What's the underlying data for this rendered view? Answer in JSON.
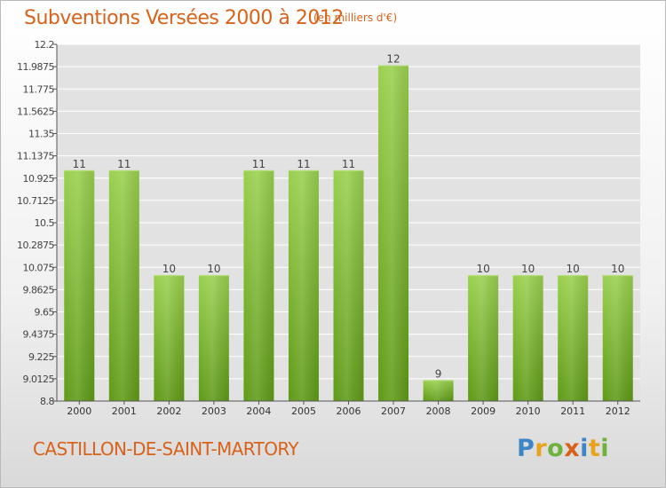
{
  "header": {
    "title": "Subventions Versées 2000 à 2012",
    "unit": "(en milliers d'€)"
  },
  "footer": {
    "commune": "CASTILLON-DE-SAINT-MARTORY",
    "logo_text": "Proxiti",
    "logo_colors": [
      "#3d85c6",
      "#e8a21c",
      "#6fb23b",
      "#d8621a",
      "#3d85c6",
      "#e8a21c",
      "#6fb23b"
    ]
  },
  "colors": {
    "accent": "#d8621a",
    "bar_light": "#9ad04f",
    "bar_dark": "#5f9a17",
    "plot_bg": "#e2e2e2",
    "grid": "#ffffff"
  },
  "chart_data": {
    "type": "bar",
    "categories": [
      "2000",
      "2001",
      "2002",
      "2003",
      "2004",
      "2005",
      "2006",
      "2007",
      "2008",
      "2009",
      "2010",
      "2011",
      "2012"
    ],
    "values": [
      11,
      11,
      10,
      10,
      11,
      11,
      11,
      12,
      9,
      10,
      10,
      10,
      10
    ],
    "value_labels": [
      "11",
      "11",
      "10",
      "10",
      "11",
      "11",
      "11",
      "12",
      "9",
      "10",
      "10",
      "10",
      "10"
    ],
    "ylim": [
      8.8,
      12.2
    ],
    "yticks": [
      8.8,
      9.0125,
      9.225,
      9.4375,
      9.65,
      9.8625,
      10.075,
      10.2875,
      10.5,
      10.7125,
      10.925,
      11.1375,
      11.35,
      11.5625,
      11.775,
      11.9875,
      12.2
    ],
    "ytick_labels": [
      "8.8",
      "9.0125",
      "9.225",
      "9.4375",
      "9.65",
      "9.8625",
      "10.075",
      "10.2875",
      "10.5",
      "10.7125",
      "10.925",
      "11.1375",
      "11.35",
      "11.5625",
      "11.775",
      "11.9875",
      "12.2"
    ],
    "title": "Subventions Versées 2000 à 2012",
    "ylabel": "(en milliers d'€)",
    "xlabel": "",
    "grid": true
  }
}
